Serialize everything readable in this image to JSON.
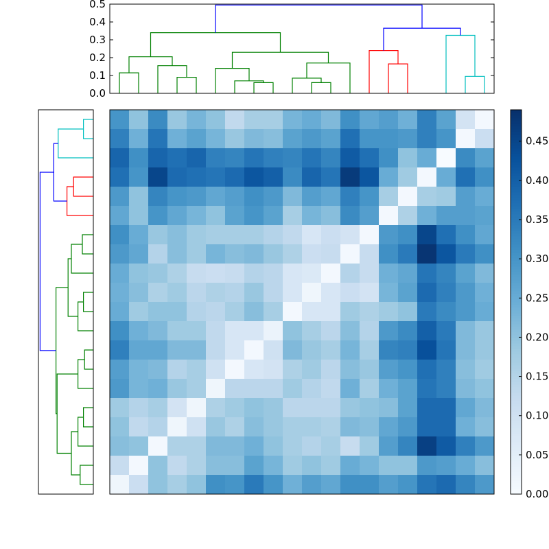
{
  "chart_data": [
    {
      "type": "dendrogram",
      "orientation": "top",
      "ylim": [
        0,
        0.5
      ],
      "yticks": [
        "0.0",
        "0.1",
        "0.2",
        "0.3",
        "0.4",
        "0.5"
      ],
      "link_colors": {
        "green": "#008000",
        "red": "#ff0000",
        "cyan": "#00bfbf",
        "blue": "#0000ff"
      },
      "links": [
        {
          "x1": 0.5,
          "x2": 1.5,
          "ys": [
            0,
            0.115,
            0.115,
            0
          ],
          "color": "green"
        },
        {
          "x1": 3.5,
          "x2": 4.5,
          "ys": [
            0,
            0.09,
            0.09,
            0
          ],
          "color": "green"
        },
        {
          "x1": 2.5,
          "x2": 4.0,
          "ys": [
            0,
            0.155,
            0.155,
            0.09
          ],
          "color": "green"
        },
        {
          "x1": 1.0,
          "x2": 3.25,
          "ys": [
            0.115,
            0.205,
            0.205,
            0.155
          ],
          "color": "green"
        },
        {
          "x1": 7.5,
          "x2": 8.5,
          "ys": [
            0,
            0.06,
            0.06,
            0
          ],
          "color": "green"
        },
        {
          "x1": 6.5,
          "x2": 8.0,
          "ys": [
            0,
            0.07,
            0.07,
            0.06
          ],
          "color": "green"
        },
        {
          "x1": 5.5,
          "x2": 7.25,
          "ys": [
            0,
            0.14,
            0.14,
            0.07
          ],
          "color": "green"
        },
        {
          "x1": 10.5,
          "x2": 11.5,
          "ys": [
            0,
            0.06,
            0.06,
            0
          ],
          "color": "green"
        },
        {
          "x1": 9.5,
          "x2": 11.0,
          "ys": [
            0,
            0.085,
            0.085,
            0.06
          ],
          "color": "green"
        },
        {
          "x1": 10.25,
          "x2": 12.5,
          "ys": [
            0.085,
            0.17,
            0.17,
            0
          ],
          "color": "green"
        },
        {
          "x1": 6.375,
          "x2": 11.375,
          "ys": [
            0.14,
            0.23,
            0.23,
            0.17
          ],
          "color": "green"
        },
        {
          "x1": 2.125,
          "x2": 8.875,
          "ys": [
            0.205,
            0.34,
            0.34,
            0.23
          ],
          "color": "green"
        },
        {
          "x1": 14.5,
          "x2": 15.5,
          "ys": [
            0,
            0.165,
            0.165,
            0
          ],
          "color": "red"
        },
        {
          "x1": 13.5,
          "x2": 15.0,
          "ys": [
            0,
            0.24,
            0.24,
            0.165
          ],
          "color": "red"
        },
        {
          "x1": 18.5,
          "x2": 19.5,
          "ys": [
            0,
            0.095,
            0.095,
            0
          ],
          "color": "cyan"
        },
        {
          "x1": 17.5,
          "x2": 19.0,
          "ys": [
            0,
            0.325,
            0.325,
            0.095
          ],
          "color": "cyan"
        },
        {
          "x1": 14.25,
          "x2": 18.25,
          "ys": [
            0.24,
            0.365,
            0.365,
            0.325
          ],
          "color": "blue"
        },
        {
          "x1": 5.5,
          "x2": 16.25,
          "ys": [
            0.34,
            0.495,
            0.495,
            0.365
          ],
          "color": "blue"
        }
      ]
    },
    {
      "type": "dendrogram",
      "orientation": "left",
      "xlim": [
        0,
        0.5
      ],
      "link_colors": {
        "green": "#008000",
        "red": "#ff0000",
        "cyan": "#00bfbf",
        "blue": "#0000ff"
      },
      "links": [
        {
          "y1": 18.5,
          "y2": 19.5,
          "xs": [
            0,
            0.09,
            0.09,
            0
          ],
          "color": "cyan"
        },
        {
          "y1": 17.5,
          "y2": 19.0,
          "xs": [
            0,
            0.32,
            0.32,
            0.09
          ],
          "color": "cyan"
        },
        {
          "y1": 15.5,
          "y2": 16.5,
          "xs": [
            0,
            0.18,
            0.18,
            0
          ],
          "color": "red"
        },
        {
          "y1": 14.5,
          "y2": 16.0,
          "xs": [
            0,
            0.24,
            0.24,
            0.18
          ],
          "color": "red"
        },
        {
          "y1": 15.25,
          "y2": 18.25,
          "xs": [
            0.24,
            0.36,
            0.36,
            0.32
          ],
          "color": "blue"
        },
        {
          "y1": 12.5,
          "y2": 13.5,
          "xs": [
            0,
            0.1,
            0.1,
            0
          ],
          "color": "green"
        },
        {
          "y1": 11.5,
          "y2": 13.0,
          "xs": [
            0,
            0.2,
            0.2,
            0.1
          ],
          "color": "green"
        },
        {
          "y1": 9.5,
          "y2": 10.5,
          "xs": [
            0,
            0.09,
            0.09,
            0
          ],
          "color": "green"
        },
        {
          "y1": 8.5,
          "y2": 10.0,
          "xs": [
            0,
            0.14,
            0.14,
            0.09
          ],
          "color": "green"
        },
        {
          "y1": 9.25,
          "y2": 12.25,
          "xs": [
            0.14,
            0.23,
            0.23,
            0.2
          ],
          "color": "green"
        },
        {
          "y1": 7.5,
          "y2": 6.5,
          "xs": [
            0,
            0.08,
            0.08,
            0
          ],
          "color": "green"
        },
        {
          "y1": 5.5,
          "y2": 7.0,
          "xs": [
            0,
            0.14,
            0.14,
            0.08
          ],
          "color": "green"
        },
        {
          "y1": 3.5,
          "y2": 4.5,
          "xs": [
            0,
            0.09,
            0.09,
            0
          ],
          "color": "green"
        },
        {
          "y1": 2.5,
          "y2": 4.0,
          "xs": [
            0,
            0.14,
            0.14,
            0.09
          ],
          "color": "green"
        },
        {
          "y1": 0.5,
          "y2": 1.5,
          "xs": [
            0,
            0.12,
            0.12,
            0
          ],
          "color": "green"
        },
        {
          "y1": 1.0,
          "y2": 3.25,
          "xs": [
            0.12,
            0.2,
            0.2,
            0.14
          ],
          "color": "green"
        },
        {
          "y1": 2.125,
          "y2": 6.25,
          "xs": [
            0.2,
            0.33,
            0.33,
            0.14
          ],
          "color": "green"
        },
        {
          "y1": 4.1875,
          "y2": 10.75,
          "xs": [
            0.33,
            0.34,
            0.34,
            0.23
          ],
          "color": "green"
        },
        {
          "y1": 7.47,
          "y2": 16.75,
          "xs": [
            0.34,
            0.485,
            0.485,
            0.36
          ],
          "color": "blue"
        }
      ]
    },
    {
      "type": "heatmap",
      "colormap": "Blues",
      "rows": 20,
      "cols": 20,
      "values": [
        [
          0.3,
          0.2,
          0.32,
          0.19,
          0.23,
          0.2,
          0.13,
          0.17,
          0.17,
          0.23,
          0.25,
          0.22,
          0.31,
          0.26,
          0.28,
          0.24,
          0.34,
          0.27,
          0.09,
          0.01
        ],
        [
          0.34,
          0.24,
          0.36,
          0.24,
          0.27,
          0.23,
          0.19,
          0.22,
          0.21,
          0.27,
          0.29,
          0.27,
          0.37,
          0.3,
          0.3,
          0.29,
          0.34,
          0.3,
          0.01,
          0.11
        ],
        [
          0.39,
          0.31,
          0.39,
          0.37,
          0.39,
          0.34,
          0.33,
          0.36,
          0.34,
          0.33,
          0.36,
          0.33,
          0.41,
          0.37,
          0.31,
          0.2,
          0.25,
          0.0,
          0.32,
          0.27
        ],
        [
          0.37,
          0.3,
          0.45,
          0.38,
          0.37,
          0.36,
          0.38,
          0.42,
          0.4,
          0.32,
          0.39,
          0.36,
          0.47,
          0.42,
          0.25,
          0.18,
          0.01,
          0.25,
          0.37,
          0.31
        ],
        [
          0.29,
          0.2,
          0.33,
          0.3,
          0.29,
          0.26,
          0.28,
          0.31,
          0.29,
          0.22,
          0.28,
          0.26,
          0.34,
          0.3,
          0.17,
          0.01,
          0.17,
          0.18,
          0.28,
          0.25
        ],
        [
          0.26,
          0.2,
          0.3,
          0.26,
          0.23,
          0.2,
          0.27,
          0.3,
          0.27,
          0.17,
          0.23,
          0.21,
          0.32,
          0.28,
          0.01,
          0.16,
          0.24,
          0.28,
          0.28,
          0.27
        ],
        [
          0.31,
          0.25,
          0.19,
          0.21,
          0.18,
          0.17,
          0.17,
          0.17,
          0.15,
          0.13,
          0.08,
          0.11,
          0.09,
          0.01,
          0.29,
          0.31,
          0.45,
          0.37,
          0.31,
          0.26
        ],
        [
          0.29,
          0.26,
          0.15,
          0.21,
          0.18,
          0.23,
          0.21,
          0.22,
          0.19,
          0.16,
          0.11,
          0.12,
          0.01,
          0.12,
          0.31,
          0.35,
          0.48,
          0.42,
          0.35,
          0.31
        ],
        [
          0.25,
          0.2,
          0.19,
          0.16,
          0.12,
          0.11,
          0.12,
          0.15,
          0.14,
          0.08,
          0.07,
          0.01,
          0.15,
          0.12,
          0.24,
          0.26,
          0.36,
          0.33,
          0.27,
          0.22
        ],
        [
          0.24,
          0.21,
          0.16,
          0.18,
          0.14,
          0.16,
          0.15,
          0.19,
          0.14,
          0.08,
          0.02,
          0.08,
          0.11,
          0.09,
          0.23,
          0.27,
          0.38,
          0.34,
          0.29,
          0.24
        ],
        [
          0.25,
          0.18,
          0.2,
          0.2,
          0.15,
          0.14,
          0.17,
          0.21,
          0.17,
          0.01,
          0.08,
          0.08,
          0.18,
          0.16,
          0.18,
          0.2,
          0.35,
          0.32,
          0.29,
          0.25
        ],
        [
          0.31,
          0.24,
          0.22,
          0.18,
          0.18,
          0.13,
          0.08,
          0.08,
          0.03,
          0.2,
          0.17,
          0.14,
          0.21,
          0.15,
          0.29,
          0.32,
          0.4,
          0.35,
          0.22,
          0.19
        ],
        [
          0.34,
          0.26,
          0.26,
          0.22,
          0.22,
          0.13,
          0.08,
          0.01,
          0.1,
          0.22,
          0.19,
          0.17,
          0.23,
          0.17,
          0.33,
          0.34,
          0.43,
          0.36,
          0.22,
          0.19
        ],
        [
          0.28,
          0.23,
          0.22,
          0.15,
          0.17,
          0.1,
          0.01,
          0.08,
          0.09,
          0.16,
          0.18,
          0.14,
          0.21,
          0.19,
          0.28,
          0.3,
          0.37,
          0.34,
          0.21,
          0.18
        ],
        [
          0.29,
          0.23,
          0.24,
          0.19,
          0.17,
          0.02,
          0.14,
          0.14,
          0.14,
          0.18,
          0.15,
          0.13,
          0.24,
          0.17,
          0.24,
          0.27,
          0.36,
          0.34,
          0.22,
          0.2
        ],
        [
          0.18,
          0.15,
          0.17,
          0.09,
          0.02,
          0.16,
          0.18,
          0.2,
          0.19,
          0.14,
          0.14,
          0.14,
          0.19,
          0.2,
          0.21,
          0.27,
          0.38,
          0.38,
          0.26,
          0.22
        ],
        [
          0.2,
          0.13,
          0.15,
          0.02,
          0.1,
          0.19,
          0.16,
          0.21,
          0.19,
          0.17,
          0.17,
          0.16,
          0.22,
          0.21,
          0.26,
          0.29,
          0.38,
          0.38,
          0.24,
          0.21
        ],
        [
          0.21,
          0.2,
          0.01,
          0.16,
          0.16,
          0.22,
          0.22,
          0.24,
          0.2,
          0.17,
          0.15,
          0.17,
          0.12,
          0.18,
          0.28,
          0.33,
          0.46,
          0.41,
          0.34,
          0.29
        ],
        [
          0.12,
          0.01,
          0.2,
          0.13,
          0.16,
          0.21,
          0.21,
          0.27,
          0.23,
          0.18,
          0.2,
          0.18,
          0.25,
          0.23,
          0.2,
          0.2,
          0.29,
          0.28,
          0.25,
          0.21
        ],
        [
          0.02,
          0.11,
          0.2,
          0.17,
          0.2,
          0.31,
          0.3,
          0.35,
          0.3,
          0.24,
          0.28,
          0.26,
          0.31,
          0.31,
          0.28,
          0.3,
          0.36,
          0.38,
          0.33,
          0.29
        ]
      ],
      "colorbar": {
        "vmin": 0.0,
        "vmax": 0.49,
        "ticks": [
          0.0,
          0.05,
          0.1,
          0.15,
          0.2,
          0.25,
          0.3,
          0.35,
          0.4,
          0.45
        ],
        "tick_labels": [
          "0.00",
          "0.05",
          "0.10",
          "0.15",
          "0.20",
          "0.25",
          "0.30",
          "0.35",
          "0.40",
          "0.45"
        ]
      }
    }
  ]
}
